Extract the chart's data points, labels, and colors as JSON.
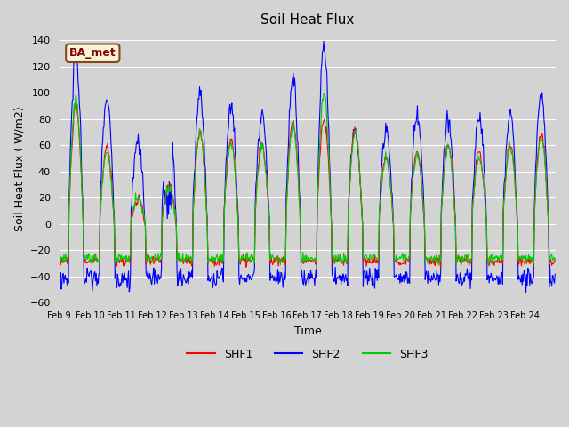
{
  "title": "Soil Heat Flux",
  "ylabel": "Soil Heat Flux ( W/m2)",
  "xlabel": "Time",
  "ylim": [
    -60,
    145
  ],
  "yticks": [
    -60,
    -40,
    -20,
    0,
    20,
    40,
    60,
    80,
    100,
    120,
    140
  ],
  "colors": {
    "SHF1": "#ff0000",
    "SHF2": "#0000ff",
    "SHF3": "#00cc00"
  },
  "bg_color": "#d3d3d3",
  "legend_label": "BA_met",
  "x_tick_labels": [
    "Feb 9",
    "Feb 10",
    "Feb 11",
    "Feb 12",
    "Feb 13",
    "Feb 14",
    "Feb 15",
    "Feb 16",
    "Feb 17",
    "Feb 18",
    "Feb 19",
    "Feb 20",
    "Feb 21",
    "Feb 22",
    "Feb 23",
    "Feb 24"
  ],
  "n_days": 16,
  "points_per_day": 48,
  "day_peaks_shf1": [
    90,
    58,
    18,
    30,
    70,
    65,
    60,
    78,
    80,
    72,
    50,
    55,
    60,
    55,
    60,
    68
  ],
  "day_peaks_shf2": [
    130,
    97,
    63,
    83,
    100,
    90,
    82,
    113,
    135,
    72,
    72,
    84,
    80,
    84,
    84,
    101
  ],
  "day_peaks_shf3": [
    95,
    55,
    20,
    28,
    70,
    60,
    58,
    75,
    100,
    70,
    50,
    52,
    58,
    50,
    58,
    65
  ]
}
